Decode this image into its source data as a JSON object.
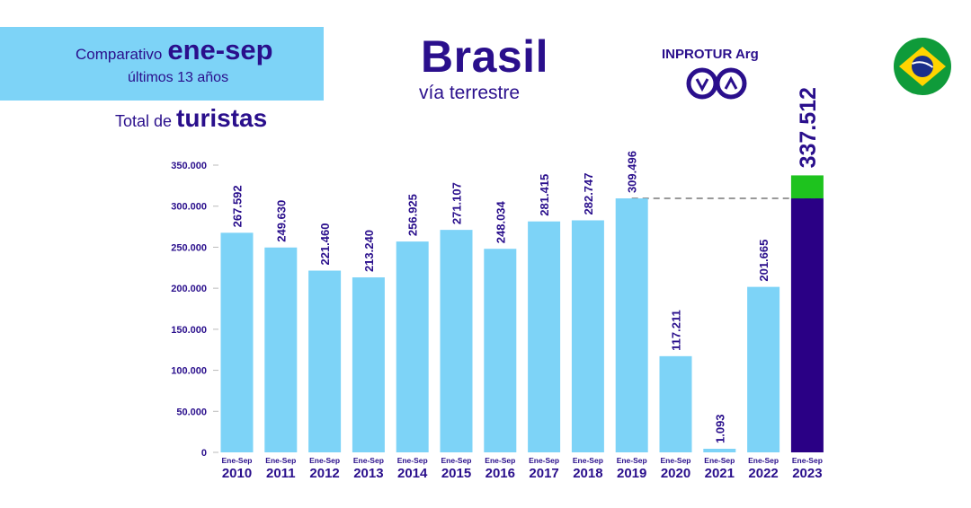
{
  "header": {
    "banner_line1_prefix": "Comparativo",
    "banner_line1_big": "ene-sep",
    "banner_line2": "últimos 13 años",
    "total_prefix": "Total de",
    "total_big": "turistas",
    "title": "Brasil",
    "subtitle": "vía terrestre",
    "logo_text": "INPROTUR Arg"
  },
  "colors": {
    "bar": "#7dd3f7",
    "highlight_bar": "#2a0085",
    "increase": "#1ec31e",
    "text": "#2a0f8c"
  },
  "chart_data": {
    "type": "bar",
    "title": "Brasil vía terrestre",
    "ylabel": "Total de turistas",
    "ylim": [
      0,
      350000
    ],
    "yticks": [
      "0",
      "50.000",
      "100.000",
      "150.000",
      "200.000",
      "250.000",
      "300.000",
      "350.000"
    ],
    "category_prefix": "Ene-Sep",
    "categories": [
      "2010",
      "2011",
      "2012",
      "2013",
      "2014",
      "2015",
      "2016",
      "2017",
      "2018",
      "2019",
      "2020",
      "2021",
      "2022",
      "2023"
    ],
    "values": [
      267592,
      249630,
      221460,
      213240,
      256925,
      271107,
      248034,
      281415,
      282747,
      309496,
      117211,
      1093,
      201665,
      337512
    ],
    "labels": [
      "267.592",
      "249.630",
      "221.460",
      "213.240",
      "256.925",
      "271.107",
      "248.034",
      "281.415",
      "282.747",
      "309.496",
      "117.211",
      "1.093",
      "201.665",
      "337.512"
    ],
    "highlight_index": 13,
    "reference_value": 309496,
    "reference_line": "dashed line at 2019 level"
  }
}
